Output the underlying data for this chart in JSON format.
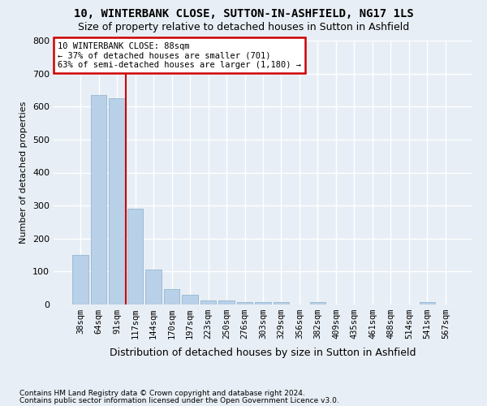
{
  "title": "10, WINTERBANK CLOSE, SUTTON-IN-ASHFIELD, NG17 1LS",
  "subtitle": "Size of property relative to detached houses in Sutton in Ashfield",
  "xlabel": "Distribution of detached houses by size in Sutton in Ashfield",
  "ylabel": "Number of detached properties",
  "footnote1": "Contains HM Land Registry data © Crown copyright and database right 2024.",
  "footnote2": "Contains public sector information licensed under the Open Government Licence v3.0.",
  "bar_labels": [
    "38sqm",
    "64sqm",
    "91sqm",
    "117sqm",
    "144sqm",
    "170sqm",
    "197sqm",
    "223sqm",
    "250sqm",
    "276sqm",
    "303sqm",
    "329sqm",
    "356sqm",
    "382sqm",
    "409sqm",
    "435sqm",
    "461sqm",
    "488sqm",
    "514sqm",
    "541sqm",
    "567sqm"
  ],
  "bar_values": [
    150,
    635,
    625,
    290,
    105,
    48,
    30,
    12,
    12,
    8,
    8,
    7,
    0,
    7,
    0,
    0,
    0,
    0,
    0,
    7,
    0
  ],
  "bar_color": "#b8d0e8",
  "bar_edge_color": "#8ab0cc",
  "vline_x": 2.5,
  "vline_color": "#cc0000",
  "annotation_line1": "10 WINTERBANK CLOSE: 88sqm",
  "annotation_line2": "← 37% of detached houses are smaller (701)",
  "annotation_line3": "63% of semi-detached houses are larger (1,180) →",
  "annotation_box_color": "#cc0000",
  "ylim": [
    0,
    800
  ],
  "yticks": [
    0,
    100,
    200,
    300,
    400,
    500,
    600,
    700,
    800
  ],
  "bg_color": "#e8eef5",
  "plot_bg_color": "#e8eef5",
  "title_fontsize": 10,
  "subtitle_fontsize": 9,
  "grid_color": "#ffffff",
  "tick_label_fontsize": 7.5,
  "ylabel_fontsize": 8,
  "xlabel_fontsize": 9
}
